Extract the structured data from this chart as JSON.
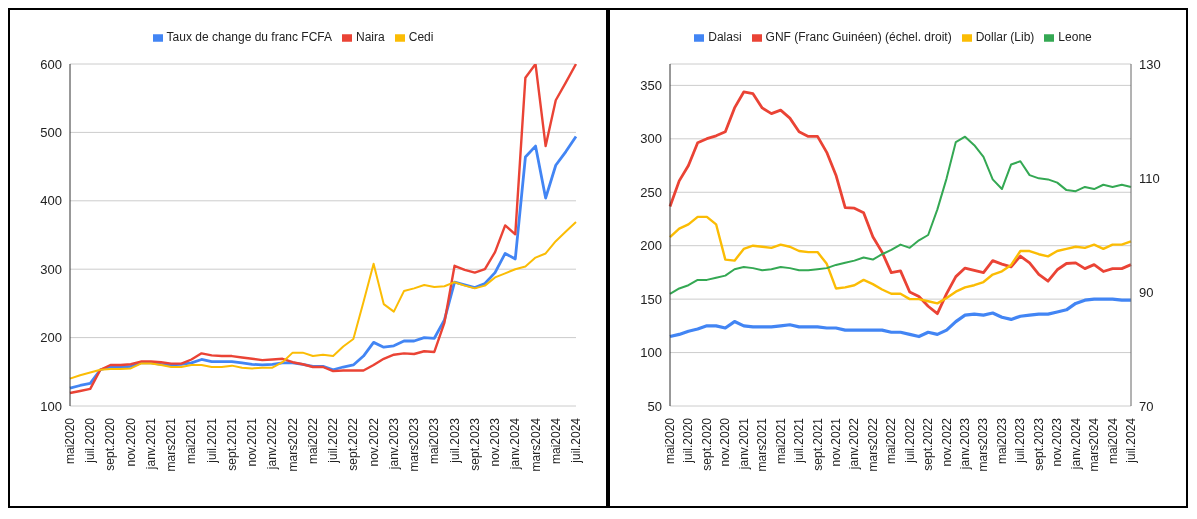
{
  "chart_data": [
    {
      "type": "line",
      "categories": [
        "mai2020",
        null,
        "juil.2020",
        null,
        "sept.2020",
        null,
        "nov.2020",
        null,
        "janv.2021",
        null,
        "mars2021",
        null,
        "mai2021",
        null,
        "juil.2021",
        null,
        "sept.2021",
        null,
        "nov.2021",
        null,
        "janv.2022",
        null,
        "mars2022",
        null,
        "mai2022",
        null,
        "juil.2022",
        null,
        "sept.2022",
        null,
        "nov.2022",
        null,
        "janv.2023",
        null,
        "mars2023",
        null,
        "mai2023",
        null,
        "juil.2023",
        null,
        "sept.2023",
        null,
        "nov.2023",
        null,
        "janv.2024",
        null,
        "mars2024",
        null,
        "mai2024",
        null,
        "juil.2024"
      ],
      "series": [
        {
          "name": "Taux de change du franc FCFA",
          "color": "#4285f4",
          "values": [
            126,
            130,
            133,
            153,
            157,
            157,
            158,
            163,
            163,
            161,
            160,
            161,
            163,
            168,
            165,
            165,
            165,
            163,
            161,
            160,
            161,
            163,
            163,
            161,
            158,
            158,
            153,
            157,
            160,
            173,
            193,
            186,
            188,
            195,
            195,
            200,
            199,
            226,
            281,
            277,
            273,
            279,
            295,
            323,
            315,
            464,
            480,
            404,
            452,
            472,
            494
          ]
        },
        {
          "name": "Naira",
          "color": "#ea4335",
          "values": [
            119,
            122,
            125,
            153,
            160,
            160,
            161,
            165,
            165,
            164,
            162,
            162,
            168,
            177,
            174,
            173,
            173,
            171,
            169,
            167,
            168,
            169,
            164,
            161,
            157,
            157,
            151,
            152,
            152,
            152,
            160,
            169,
            175,
            177,
            176,
            180,
            179,
            222,
            305,
            299,
            295,
            300,
            325,
            364,
            351,
            580,
            600,
            480,
            547,
            573,
            600
          ]
        },
        {
          "name": "Cedi",
          "color": "#fbbc04",
          "values": [
            140,
            145,
            149,
            153,
            154,
            154,
            155,
            162,
            162,
            160,
            157,
            157,
            160,
            160,
            157,
            157,
            159,
            156,
            155,
            156,
            156,
            164,
            178,
            178,
            173,
            175,
            173,
            187,
            198,
            252,
            308,
            249,
            238,
            268,
            272,
            277,
            274,
            275,
            281,
            276,
            272,
            276,
            288,
            294,
            300,
            304,
            317,
            323,
            341,
            355,
            369
          ]
        }
      ],
      "ylim": [
        100,
        600
      ],
      "yticks": [
        100,
        200,
        300,
        400,
        500,
        600
      ],
      "grid": "y",
      "legend": "top"
    },
    {
      "type": "line",
      "categories": [
        "mai2020",
        null,
        "juil.2020",
        null,
        "sept.2020",
        null,
        "nov.2020",
        null,
        "janv.2021",
        null,
        "mars2021",
        null,
        "mai2021",
        null,
        "juil.2021",
        null,
        "sept.2021",
        null,
        "nov.2021",
        null,
        "janv.2022",
        null,
        "mars2022",
        null,
        "mai2022",
        null,
        "juil.2022",
        null,
        "sept.2022",
        null,
        "nov.2022",
        null,
        "janv.2023",
        null,
        "mars2023",
        null,
        "mai2023",
        null,
        "juil.2023",
        null,
        "sept.2023",
        null,
        "nov.2023",
        null,
        "janv.2024",
        null,
        "mars2024",
        null,
        "mai2024",
        null,
        "juil.2024"
      ],
      "series": [
        {
          "name": "Dalasi",
          "color": "#4285f4",
          "values": [
            115,
            117,
            120,
            122,
            125,
            125,
            123,
            129,
            125,
            124,
            124,
            124,
            125,
            126,
            124,
            124,
            124,
            123,
            123,
            121,
            121,
            121,
            121,
            121,
            119,
            119,
            117,
            115,
            119,
            117,
            121,
            129,
            135,
            136,
            135,
            137,
            133,
            131,
            134,
            135,
            136,
            136,
            138,
            140,
            146,
            149,
            150,
            150,
            150,
            149,
            149
          ]
        },
        {
          "name": "GNF (Franc Guinéen) (échel. droit)",
          "color": "#ea4335",
          "axis": "y2",
          "values": [
            105.0,
            109.5,
            112.2,
            116.2,
            116.9,
            117.4,
            118.1,
            122.3,
            125.1,
            124.8,
            122.3,
            121.3,
            121.9,
            120.5,
            118.1,
            117.3,
            117.3,
            114.5,
            110.5,
            104.8,
            104.7,
            103.9,
            99.7,
            97.0,
            93.4,
            93.7,
            90.0,
            89.2,
            87.5,
            86.2,
            89.7,
            92.7,
            94.2,
            93.8,
            93.4,
            95.5,
            94.9,
            94.4,
            96.3,
            95.1,
            93.1,
            91.9,
            93.9,
            95.0,
            95.1,
            94.1,
            94.8,
            93.6,
            94.1,
            94.1,
            94.8
          ]
        },
        {
          "name": "Dollar (Lib)",
          "color": "#fbbc04",
          "values": [
            208,
            216,
            220,
            227,
            227,
            220,
            187,
            186,
            197,
            200,
            199,
            198,
            201,
            199,
            195,
            194,
            194,
            183,
            160,
            161,
            163,
            168,
            164,
            159,
            155,
            155,
            150,
            150,
            148,
            146,
            151,
            157,
            161,
            163,
            166,
            173,
            176,
            182,
            195,
            195,
            192,
            190,
            195,
            197,
            199,
            198,
            201,
            197,
            201,
            201,
            204
          ]
        },
        {
          "name": "Leone",
          "color": "#34a853",
          "values": [
            155,
            160,
            163,
            168,
            168,
            170,
            172,
            178,
            180,
            179,
            177,
            178,
            180,
            179,
            177,
            177,
            178,
            179,
            182,
            184,
            186,
            189,
            187,
            192,
            196,
            201,
            198,
            205,
            210,
            234,
            263,
            297,
            302,
            294,
            283,
            262,
            253,
            276,
            279,
            266,
            263,
            262,
            259,
            252,
            251,
            255,
            253,
            257,
            255,
            257,
            255
          ]
        }
      ],
      "ylim": [
        50,
        370
      ],
      "yticks": [
        50,
        100,
        150,
        200,
        250,
        300,
        350
      ],
      "y2lim": [
        70,
        130
      ],
      "y2ticks": [
        70,
        90,
        110,
        130
      ],
      "grid": "y",
      "legend": "top"
    }
  ]
}
